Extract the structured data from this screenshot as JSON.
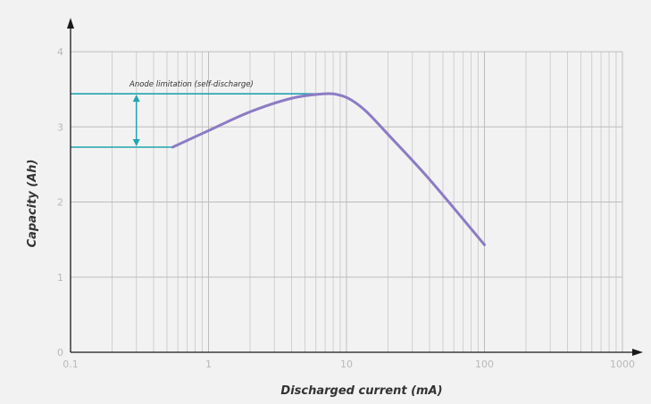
{
  "chart_data": {
    "type": "line",
    "title": "",
    "xlabel": "Discharged current (mA)",
    "ylabel": "Capacity (Ah)",
    "x_scale": "log",
    "xlim": [
      0.1,
      1000
    ],
    "ylim": [
      0,
      4
    ],
    "x_ticks": [
      0.1,
      1,
      10,
      100,
      1000
    ],
    "x_tick_labels": [
      "0.1",
      "1",
      "10",
      "100",
      "1000"
    ],
    "y_ticks": [
      0,
      1,
      2,
      3,
      4
    ],
    "y_tick_labels": [
      "0",
      "1",
      "2",
      "3",
      "4"
    ],
    "grid": true,
    "legend": "none",
    "series": [
      {
        "color": "#8c7bc4",
        "x": [
          0.55,
          1,
          2,
          4,
          7,
          9,
          11,
          14,
          20,
          40,
          100
        ],
        "y": [
          2.73,
          2.95,
          3.2,
          3.38,
          3.44,
          3.42,
          3.35,
          3.2,
          2.9,
          2.3,
          1.43
        ]
      }
    ],
    "reference_lines": [
      {
        "y": 3.44,
        "x_end": 7,
        "color": "#1fa5b0"
      },
      {
        "y": 2.73,
        "x_end": 0.55,
        "color": "#1fa5b0"
      }
    ],
    "annotations": [
      {
        "text": "Anode limitation (self-discharge)",
        "x": 0.3,
        "y_from": 2.73,
        "y_to": 3.44,
        "color": "#1fa5b0"
      }
    ]
  }
}
